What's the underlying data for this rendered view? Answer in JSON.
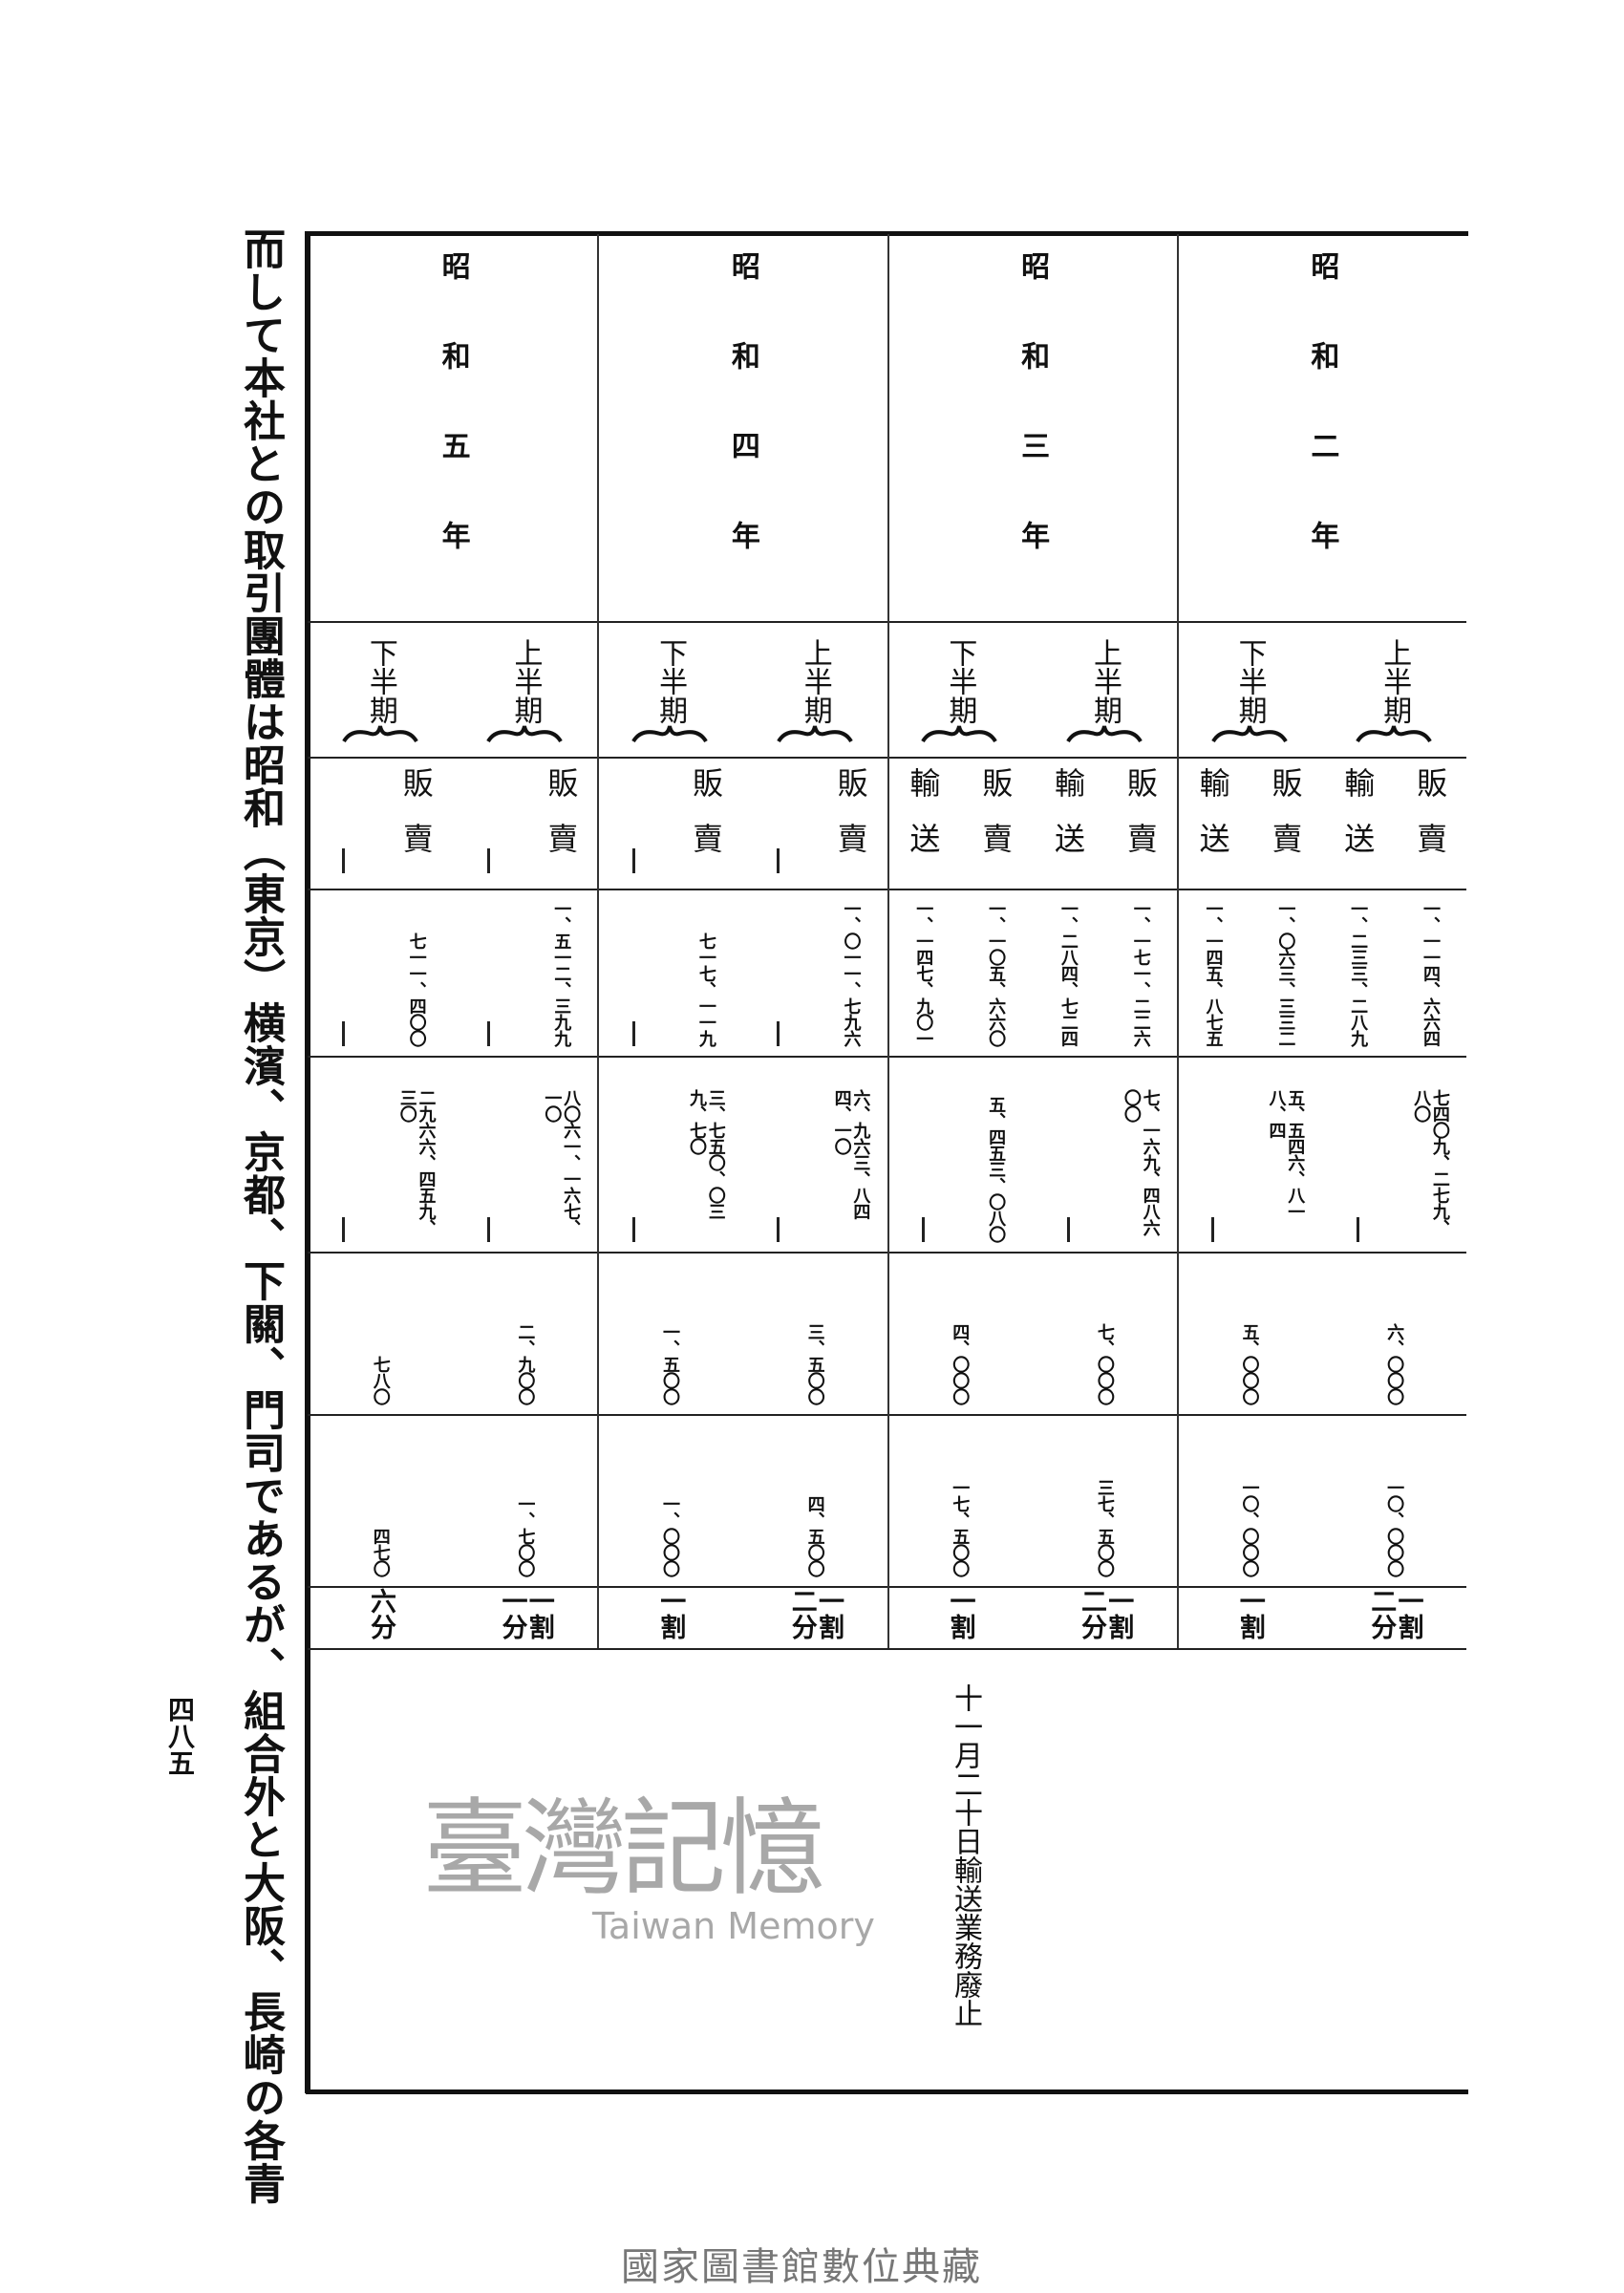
{
  "body_text": "而して本社との取引團體は昭和（東京）横濱、京都、下關、門司であるが、組合外と大阪、長崎の各青",
  "page_number": "四八五",
  "table": {
    "sales_label": "販賣",
    "transport_label": "輸送",
    "years": [
      {
        "label": "昭和二年",
        "halves": [
          {
            "label": "上半期",
            "sales": [
              "一、一一四、六六四",
              "七四〇九、二七九、八〇"
            ],
            "transport": [
              "一、二三三、二八九",
              null
            ],
            "row3": "六、〇〇〇",
            "row4": "一〇、〇〇〇",
            "rate": "一割二分"
          },
          {
            "label": "下半期",
            "sales": [
              "一、〇六三、三三二",
              "五、五四六、八一八、四"
            ],
            "transport": [
              "一、一四五、八七五",
              null
            ],
            "row3": "五、〇〇〇",
            "row4": "一〇、〇〇〇",
            "rate": "一割"
          }
        ]
      },
      {
        "label": "昭和三年",
        "halves": [
          {
            "label": "上半期",
            "sales": [
              "一、一七一、二二六",
              "七、一六九、四八六〇〇"
            ],
            "transport": [
              "一、二八四、七二四",
              null
            ],
            "row3": "七、〇〇〇",
            "row4": "三七、五〇〇",
            "rate": "一割二分"
          },
          {
            "label": "下半期",
            "sales": [
              "一、一〇五、六六〇",
              "五、四五三、〇八〇"
            ],
            "transport": [
              "一、一四七、九〇一",
              null
            ],
            "row3": "四、〇〇〇",
            "row4": "一七、五〇〇",
            "rate": "一割"
          }
        ]
      },
      {
        "label": "昭和四年",
        "halves": [
          {
            "label": "上半期",
            "sales": [
              "一、〇一一、七九六",
              "六、九六三、八四四、一〇"
            ],
            "transport": null,
            "row3": "三、五〇〇",
            "row4": "四、五〇〇",
            "rate": "一割二分"
          },
          {
            "label": "下半期",
            "sales": [
              "七一七、一一九",
              "三、七五〇、〇三九、七〇"
            ],
            "transport": null,
            "row3": "一、五〇〇",
            "row4": "一、〇〇〇",
            "rate": "一割"
          }
        ]
      },
      {
        "label": "昭和五年",
        "halves": [
          {
            "label": "上半期",
            "sales": [
              "一、五一二、三九九",
              "八〇六一、一六七、一〇"
            ],
            "transport": null,
            "row3": "二、九〇〇",
            "row4": "一、七〇〇",
            "rate": "一割一分"
          },
          {
            "label": "下半期",
            "sales": [
              "七一一、四〇〇",
              "二九六六、四五九、三〇"
            ],
            "transport": null,
            "row3": "七八〇",
            "row4": "四七〇",
            "rate": "六分"
          }
        ]
      }
    ]
  },
  "note": "十一月二十日輸送業務廢止",
  "watermark": {
    "cn": "臺灣記憶",
    "en": "Taiwan Memory"
  },
  "footer": "國家圖書館數位典藏",
  "colors": {
    "ink": "#111111",
    "watermark": "#9a9a9a",
    "footer": "#777777"
  }
}
